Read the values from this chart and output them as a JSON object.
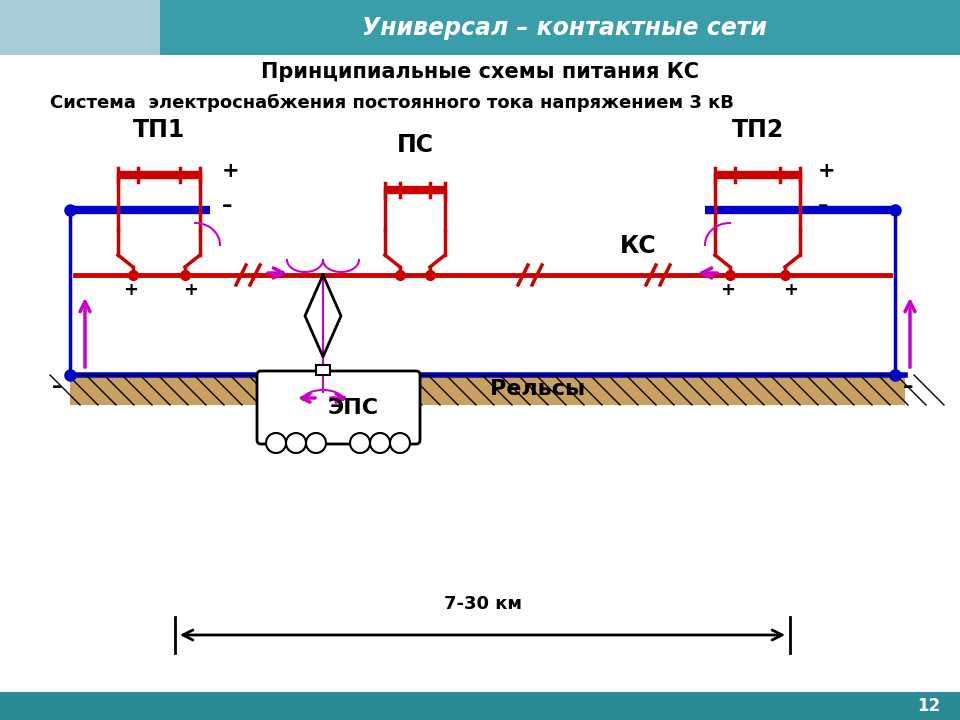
{
  "title_main": "Принципиальные схемы питания КС",
  "title_sub": "Система  электроснабжения постоянного тока напряжением 3 кВ",
  "header_text": "Универсал – контактные сети",
  "header_bg": "#3a9eaa",
  "footer_bg": "#2a8a96",
  "page_num": "12",
  "label_tp1": "ТП1",
  "label_tp2": "ТП2",
  "label_ps": "ПС",
  "label_ks": "КС",
  "label_eps": "ЭПС",
  "label_rails": "Рельсы",
  "label_dist": "7-30 км",
  "color_red": "#cc0000",
  "color_blue": "#0000cc",
  "color_magenta": "#cc00cc",
  "color_black": "#000000",
  "color_hatch_bg": "#c8a060",
  "background": "#ffffff",
  "header_logo_bg": "#a8ccd8"
}
